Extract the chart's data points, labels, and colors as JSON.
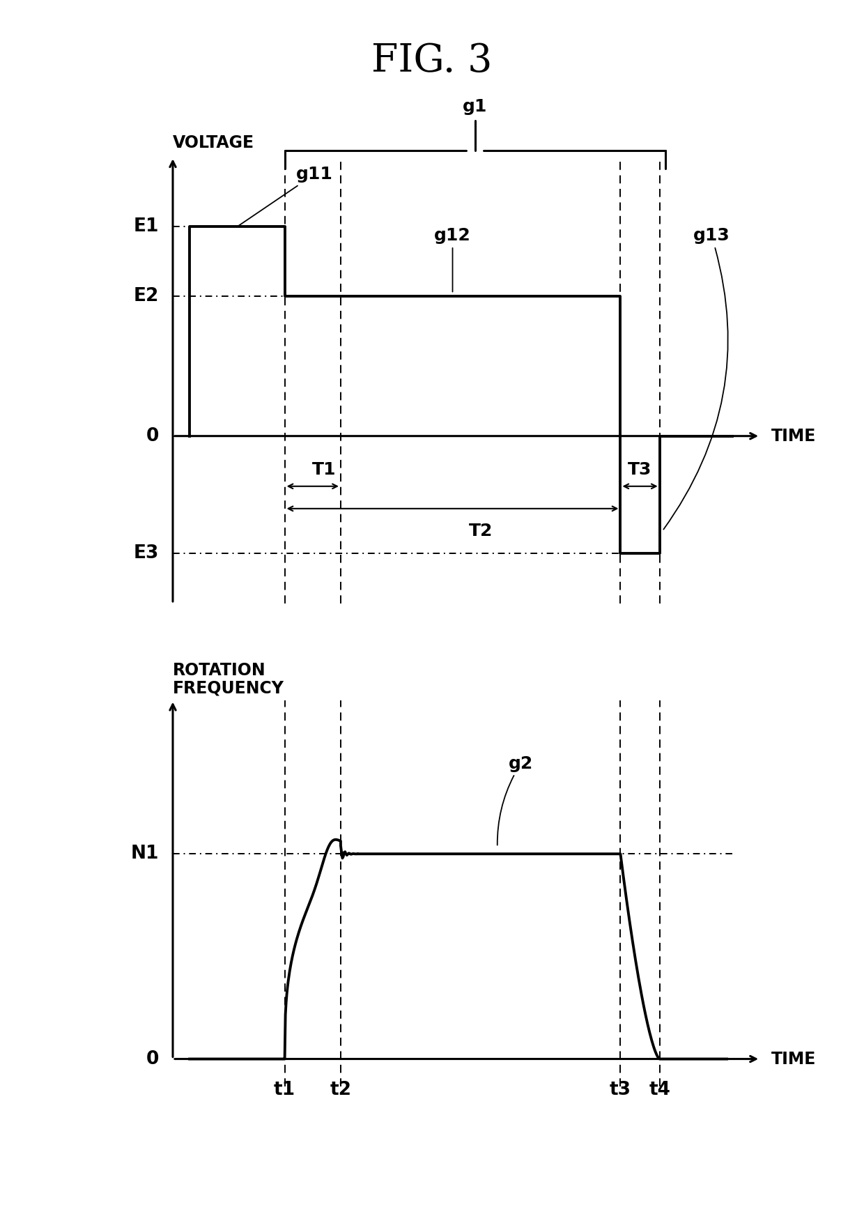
{
  "title": "FIG. 3",
  "title_fontsize": 40,
  "fig_width": 12.4,
  "fig_height": 17.32,
  "background_color": "#ffffff",
  "top_plot": {
    "ylabel": "VOLTAGE",
    "xlabel": "TIME",
    "E1": 0.75,
    "E2": 0.5,
    "E3": -0.42,
    "zero": 0.0,
    "t1": 0.2,
    "t2": 0.3,
    "t3": 0.8,
    "t4": 0.87,
    "ylim": [
      -0.6,
      1.0
    ],
    "xlim": [
      0.0,
      1.05
    ]
  },
  "bottom_plot": {
    "ylabel": "ROTATION\nFREQUENCY",
    "xlabel": "TIME",
    "N1": 0.6,
    "t1": 0.2,
    "t2": 0.3,
    "t3": 0.8,
    "t4": 0.87,
    "ylim": [
      -0.08,
      1.05
    ],
    "xlim": [
      0.0,
      1.05
    ]
  },
  "line_color": "#000000",
  "label_fontsize": 17,
  "tick_fontsize": 19,
  "annotation_fontsize": 18
}
